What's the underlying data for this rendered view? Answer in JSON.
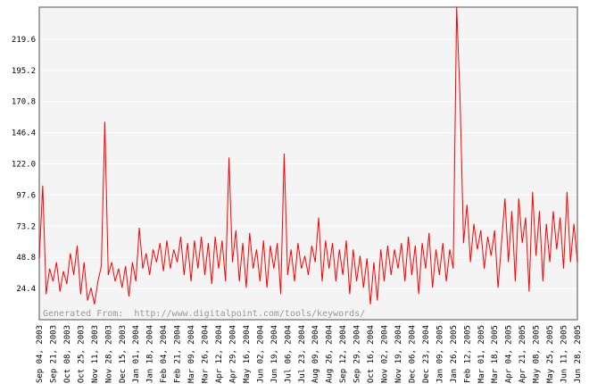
{
  "chart_data": {
    "type": "line",
    "watermark": "Generated From:  http://www.digitalpoint.com/tools/keywords/",
    "categories": [
      "Sep 04, 2003",
      null,
      null,
      null,
      "Sep 21, 2003",
      null,
      null,
      null,
      "Oct 08, 2003",
      null,
      null,
      null,
      "Oct 25, 2003",
      null,
      null,
      null,
      "Nov 11, 2003",
      null,
      null,
      null,
      "Nov 28, 2003",
      null,
      null,
      null,
      "Dec 15, 2003",
      null,
      null,
      null,
      "Jan 01, 2004",
      null,
      null,
      null,
      "Jan 18, 2004",
      null,
      null,
      null,
      "Feb 04, 2004",
      null,
      null,
      null,
      "Feb 21, 2004",
      null,
      null,
      null,
      "Mar 09, 2004",
      null,
      null,
      null,
      "Mar 26, 2004",
      null,
      null,
      null,
      "Apr 12, 2004",
      null,
      null,
      null,
      "Apr 29, 2004",
      null,
      null,
      null,
      "May 16, 2004",
      null,
      null,
      null,
      "Jun 02, 2004",
      null,
      null,
      null,
      "Jun 19, 2004",
      null,
      null,
      null,
      "Jul 06, 2004",
      null,
      null,
      null,
      "Jul 23, 2004",
      null,
      null,
      null,
      "Aug 09, 2004",
      null,
      null,
      null,
      "Aug 26, 2004",
      null,
      null,
      null,
      "Sep 12, 2004",
      null,
      null,
      null,
      "Sep 29, 2004",
      null,
      null,
      null,
      "Oct 16, 2004",
      null,
      null,
      null,
      "Nov 02, 2004",
      null,
      null,
      null,
      "Nov 19, 2004",
      null,
      null,
      null,
      "Dec 06, 2004",
      null,
      null,
      null,
      "Dec 23, 2004",
      null,
      null,
      null,
      "Jan 09, 2005",
      null,
      null,
      null,
      "Jan 26, 2005",
      null,
      null,
      null,
      "Feb 12, 2005",
      null,
      null,
      null,
      "Mar 01, 2005",
      null,
      null,
      null,
      "Mar 18, 2005",
      null,
      null,
      null,
      "Apr 04, 2005",
      null,
      null,
      null,
      "Apr 21, 2005",
      null,
      null,
      null,
      "May 08, 2005",
      null,
      null,
      null,
      "May 25, 2005",
      null,
      null,
      null,
      "Jun 11, 2005",
      null,
      null,
      null,
      "Jun 28, 2005"
    ],
    "series": [
      {
        "color": "#ff0000",
        "values": [
          48,
          105,
          20,
          40,
          30,
          45,
          22,
          38,
          28,
          52,
          35,
          58,
          20,
          45,
          15,
          25,
          12,
          30,
          42,
          155,
          35,
          45,
          30,
          40,
          25,
          42,
          18,
          45,
          30,
          72,
          40,
          52,
          35,
          55,
          45,
          60,
          38,
          62,
          40,
          55,
          45,
          65,
          35,
          60,
          30,
          62,
          40,
          65,
          35,
          60,
          28,
          65,
          40,
          62,
          30,
          127,
          45,
          70,
          30,
          60,
          25,
          68,
          40,
          55,
          30,
          62,
          25,
          58,
          40,
          60,
          20,
          130,
          35,
          55,
          30,
          60,
          40,
          50,
          35,
          58,
          45,
          80,
          30,
          62,
          40,
          60,
          30,
          55,
          35,
          62,
          20,
          55,
          30,
          50,
          25,
          48,
          12,
          45,
          15,
          55,
          30,
          58,
          35,
          55,
          40,
          60,
          30,
          65,
          35,
          58,
          20,
          60,
          40,
          68,
          25,
          55,
          35,
          60,
          30,
          55,
          40,
          245,
          172,
          60,
          90,
          45,
          75,
          55,
          70,
          40,
          65,
          50,
          70,
          25,
          60,
          95,
          45,
          85,
          30,
          95,
          60,
          80,
          22,
          100,
          50,
          85,
          30,
          75,
          45,
          85,
          55,
          80,
          40,
          100,
          45,
          75,
          45
        ]
      }
    ],
    "ylim": [
      0,
      244.7
    ],
    "yticks": [
      24.4,
      48.8,
      73.2,
      97.6,
      {
        "value": 122,
        "label": "122.0"
      },
      146.4,
      170.8,
      195.2,
      219.6
    ],
    "grid": true
  }
}
